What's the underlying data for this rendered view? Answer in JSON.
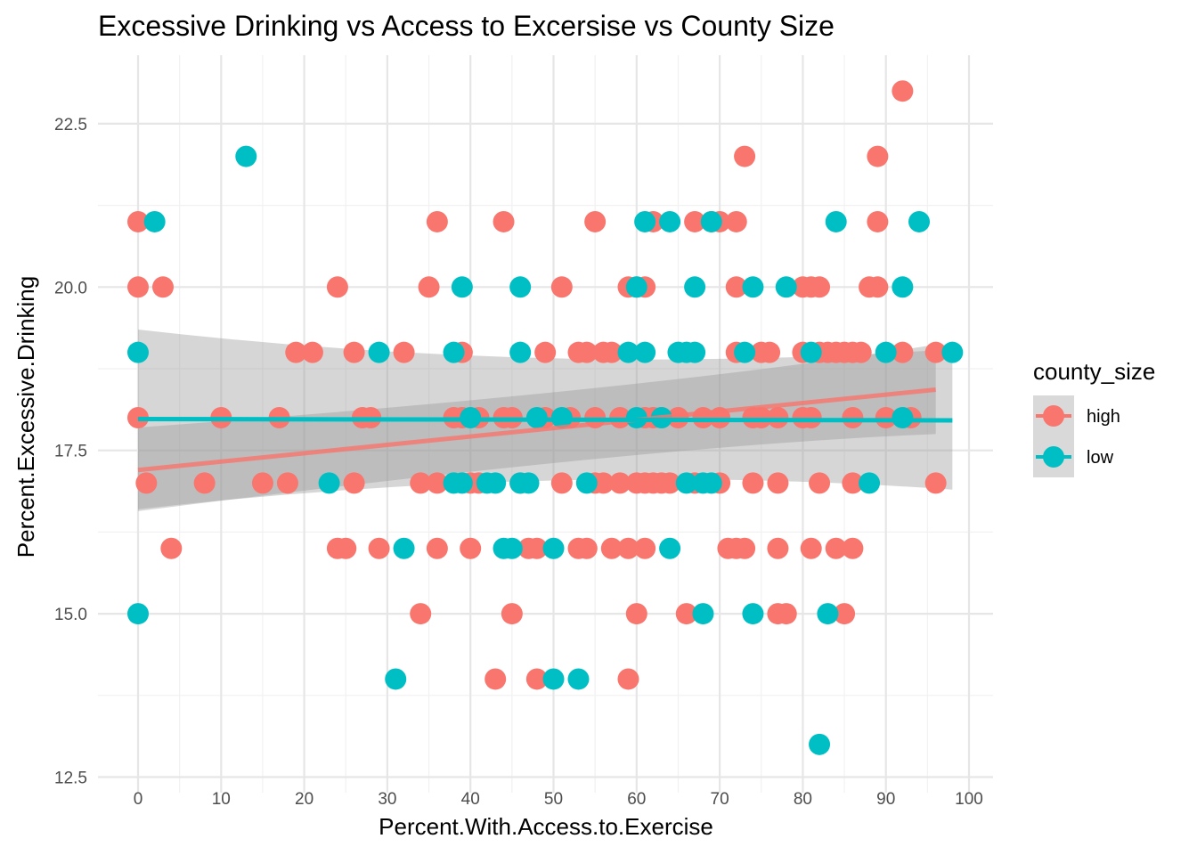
{
  "chart_data": {
    "type": "scatter",
    "title": "Excessive Drinking vs Access to Excersise vs County Size",
    "xlabel": "Percent.With.Access.to.Exercise",
    "ylabel": "Percent.Excessive.Drinking",
    "xlim": [
      -4,
      100
    ],
    "ylim": [
      12.5,
      23.5
    ],
    "x_ticks": [
      0,
      10,
      20,
      30,
      40,
      50,
      60,
      70,
      80,
      90,
      100
    ],
    "y_ticks": [
      12.5,
      15.0,
      17.5,
      20.0,
      22.5
    ],
    "y_tick_labels": [
      "12.5",
      "15.0",
      "17.5",
      "20.0",
      "22.5"
    ],
    "grid": true,
    "legend": {
      "title": "county_size",
      "position": "right"
    },
    "series": [
      {
        "name": "high",
        "color": "#F8766D",
        "points": [
          [
            0,
            21
          ],
          [
            0,
            20
          ],
          [
            0,
            18
          ],
          [
            1,
            17
          ],
          [
            3,
            20
          ],
          [
            4,
            16
          ],
          [
            8,
            17
          ],
          [
            10,
            18
          ],
          [
            15,
            17
          ],
          [
            17,
            18
          ],
          [
            18,
            17
          ],
          [
            19,
            19
          ],
          [
            21,
            19
          ],
          [
            24,
            20
          ],
          [
            24,
            16
          ],
          [
            25,
            16
          ],
          [
            26,
            19
          ],
          [
            26,
            17
          ],
          [
            27,
            18
          ],
          [
            28,
            18
          ],
          [
            29,
            16
          ],
          [
            32,
            19
          ],
          [
            34,
            17
          ],
          [
            34,
            15
          ],
          [
            35,
            20
          ],
          [
            36,
            21
          ],
          [
            36,
            17
          ],
          [
            36,
            16
          ],
          [
            38,
            18
          ],
          [
            39,
            19
          ],
          [
            39,
            18
          ],
          [
            40,
            17
          ],
          [
            40,
            16
          ],
          [
            41,
            18
          ],
          [
            41,
            17
          ],
          [
            43,
            14
          ],
          [
            44,
            21
          ],
          [
            44,
            18
          ],
          [
            45,
            18
          ],
          [
            45,
            15
          ],
          [
            46,
            17
          ],
          [
            47,
            16
          ],
          [
            48,
            16
          ],
          [
            48,
            14
          ],
          [
            49,
            19
          ],
          [
            49,
            18
          ],
          [
            51,
            20
          ],
          [
            51,
            17
          ],
          [
            52,
            18
          ],
          [
            53,
            19
          ],
          [
            53,
            16
          ],
          [
            54,
            19
          ],
          [
            54,
            16
          ],
          [
            55,
            21
          ],
          [
            55,
            18
          ],
          [
            55,
            17
          ],
          [
            56,
            19
          ],
          [
            56,
            17
          ],
          [
            57,
            19
          ],
          [
            57,
            16
          ],
          [
            58,
            18
          ],
          [
            58,
            17
          ],
          [
            59,
            20
          ],
          [
            59,
            16
          ],
          [
            59,
            14
          ],
          [
            60,
            20
          ],
          [
            60,
            17
          ],
          [
            60,
            15
          ],
          [
            61,
            20
          ],
          [
            61,
            18
          ],
          [
            61,
            17
          ],
          [
            61,
            16
          ],
          [
            62,
            21
          ],
          [
            62,
            18
          ],
          [
            62,
            17
          ],
          [
            63,
            18
          ],
          [
            63,
            17
          ],
          [
            64,
            17
          ],
          [
            65,
            18
          ],
          [
            66,
            15
          ],
          [
            67,
            21
          ],
          [
            67,
            17
          ],
          [
            68,
            18
          ],
          [
            69,
            21
          ],
          [
            70,
            21
          ],
          [
            70,
            18
          ],
          [
            70,
            17
          ],
          [
            71,
            16
          ],
          [
            72,
            21
          ],
          [
            72,
            20
          ],
          [
            72,
            19
          ],
          [
            72,
            16
          ],
          [
            73,
            22
          ],
          [
            73,
            16
          ],
          [
            74,
            18
          ],
          [
            74,
            17
          ],
          [
            75,
            19
          ],
          [
            75,
            18
          ],
          [
            76,
            19
          ],
          [
            77,
            18
          ],
          [
            77,
            17
          ],
          [
            77,
            16
          ],
          [
            77,
            15
          ],
          [
            78,
            15
          ],
          [
            80,
            20
          ],
          [
            80,
            19
          ],
          [
            80,
            18
          ],
          [
            81,
            20
          ],
          [
            81,
            18
          ],
          [
            81,
            16
          ],
          [
            82,
            20
          ],
          [
            82,
            19
          ],
          [
            82,
            17
          ],
          [
            83,
            19
          ],
          [
            84,
            19
          ],
          [
            84,
            16
          ],
          [
            85,
            19
          ],
          [
            85,
            15
          ],
          [
            86,
            19
          ],
          [
            86,
            18
          ],
          [
            86,
            17
          ],
          [
            86,
            16
          ],
          [
            87,
            19
          ],
          [
            88,
            20
          ],
          [
            89,
            22
          ],
          [
            89,
            21
          ],
          [
            89,
            20
          ],
          [
            90,
            18
          ],
          [
            92,
            23
          ],
          [
            92,
            19
          ],
          [
            93,
            18
          ],
          [
            96,
            19
          ],
          [
            96,
            17
          ]
        ]
      },
      {
        "name": "low",
        "color": "#00BFC4",
        "points": [
          [
            0,
            19
          ],
          [
            0,
            15
          ],
          [
            2,
            21
          ],
          [
            13,
            22
          ],
          [
            23,
            17
          ],
          [
            29,
            19
          ],
          [
            31,
            14
          ],
          [
            32,
            16
          ],
          [
            38,
            19
          ],
          [
            38,
            17
          ],
          [
            39,
            20
          ],
          [
            39,
            17
          ],
          [
            40,
            18
          ],
          [
            42,
            17
          ],
          [
            43,
            17
          ],
          [
            44,
            16
          ],
          [
            45,
            16
          ],
          [
            46,
            20
          ],
          [
            46,
            19
          ],
          [
            46,
            17
          ],
          [
            47,
            17
          ],
          [
            48,
            18
          ],
          [
            50,
            16
          ],
          [
            50,
            14
          ],
          [
            51,
            18
          ],
          [
            53,
            14
          ],
          [
            54,
            17
          ],
          [
            59,
            19
          ],
          [
            60,
            20
          ],
          [
            60,
            18
          ],
          [
            61,
            21
          ],
          [
            61,
            19
          ],
          [
            63,
            18
          ],
          [
            64,
            21
          ],
          [
            64,
            16
          ],
          [
            65,
            19
          ],
          [
            66,
            19
          ],
          [
            66,
            17
          ],
          [
            67,
            20
          ],
          [
            67,
            19
          ],
          [
            68,
            17
          ],
          [
            68,
            15
          ],
          [
            69,
            21
          ],
          [
            69,
            17
          ],
          [
            73,
            19
          ],
          [
            74,
            20
          ],
          [
            74,
            15
          ],
          [
            78,
            20
          ],
          [
            81,
            19
          ],
          [
            82,
            13
          ],
          [
            83,
            15
          ],
          [
            84,
            21
          ],
          [
            88,
            17
          ],
          [
            90,
            19
          ],
          [
            92,
            20
          ],
          [
            92,
            18
          ],
          [
            94,
            21
          ],
          [
            98,
            19
          ]
        ]
      }
    ],
    "trend_lines": [
      {
        "series": "high",
        "x": [
          0,
          96
        ],
        "y": [
          17.2,
          18.43
        ],
        "band_lower": [
          16.57,
          17.75
        ],
        "band_upper": [
          17.85,
          19.12
        ],
        "band_mid_x": 62,
        "band_mid_lower": 17.85,
        "band_mid_upper": 18.15
      },
      {
        "series": "low",
        "x": [
          0,
          98
        ],
        "y": [
          17.98,
          17.96
        ],
        "band_lower": [
          16.6,
          16.9
        ],
        "band_upper": [
          19.35,
          19.05
        ],
        "band_mid_x": 50,
        "band_mid_lower": 17.6,
        "band_mid_upper": 18.35
      }
    ]
  }
}
